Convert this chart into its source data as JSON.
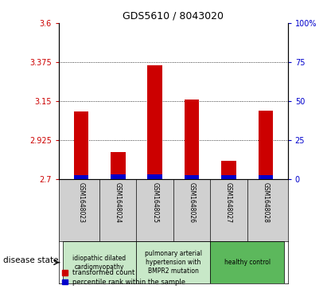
{
  "title": "GDS5610 / 8043020",
  "samples": [
    "GSM1648023",
    "GSM1648024",
    "GSM1648025",
    "GSM1648026",
    "GSM1648027",
    "GSM1648028"
  ],
  "red_values": [
    3.09,
    2.855,
    3.355,
    3.16,
    2.805,
    3.095
  ],
  "blue_values": [
    0.025,
    0.03,
    0.03,
    0.025,
    0.025,
    0.025
  ],
  "ylim_left": [
    2.7,
    3.6
  ],
  "yticks_left": [
    2.7,
    2.925,
    3.15,
    3.375,
    3.6
  ],
  "ytick_labels_left": [
    "2.7",
    "2.925",
    "3.15",
    "3.375",
    "3.6"
  ],
  "ylim_right": [
    0,
    100
  ],
  "yticks_right": [
    0,
    25,
    50,
    75,
    100
  ],
  "ytick_labels_right": [
    "0",
    "25",
    "50",
    "75",
    "100%"
  ],
  "grid_lines": [
    2.925,
    3.15,
    3.375
  ],
  "disease_groups": [
    {
      "label": "idiopathic dilated\ncardiomyopathy",
      "indices": [
        0,
        1
      ],
      "color": "#c8e6c9"
    },
    {
      "label": "pulmonary arterial\nhypertension with\nBMPR2 mutation",
      "indices": [
        2,
        3
      ],
      "color": "#c8e6c9"
    },
    {
      "label": "healthy control",
      "indices": [
        4,
        5
      ],
      "color": "#66bb6a"
    }
  ],
  "disease_state_label": "disease state",
  "legend_red_label": "transformed count",
  "legend_blue_label": "percentile rank within the sample",
  "bar_width": 0.4,
  "red_color": "#cc0000",
  "blue_color": "#0000cc",
  "label_color_left": "#cc0000",
  "label_color_right": "#0000cc",
  "bg_color_sample": "#d0d0d0",
  "bg_color_disease1": "#d4edda",
  "bg_color_disease2": "#5cb85c"
}
